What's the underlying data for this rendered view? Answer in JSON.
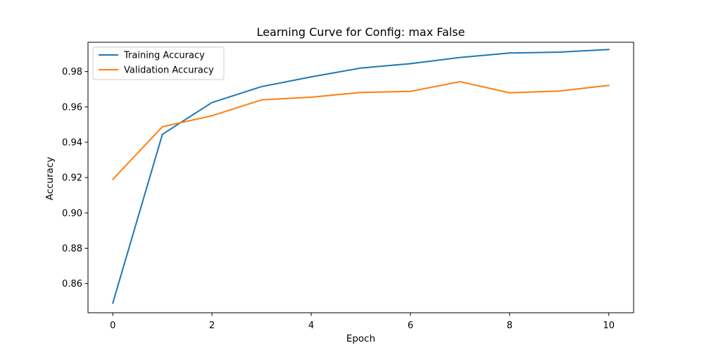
{
  "chart_data": {
    "type": "line",
    "title": "Learning Curve for Config: max False",
    "xlabel": "Epoch",
    "ylabel": "Accuracy",
    "x": [
      0,
      1,
      2,
      3,
      4,
      5,
      6,
      7,
      8,
      9,
      10
    ],
    "xlim": [
      -0.5,
      10.5
    ],
    "ylim": [
      0.8435,
      0.9966
    ],
    "xticks": [
      0,
      2,
      4,
      6,
      8,
      10
    ],
    "xtick_labels": [
      "0",
      "2",
      "4",
      "6",
      "8",
      "10"
    ],
    "yticks": [
      0.86,
      0.88,
      0.9,
      0.92,
      0.94,
      0.96,
      0.98
    ],
    "ytick_labels": [
      "0.86",
      "0.88",
      "0.90",
      "0.92",
      "0.94",
      "0.96",
      "0.98"
    ],
    "grid": false,
    "legend_position": "top-left",
    "series": [
      {
        "name": "Training Accuracy",
        "color": "#1f77b4",
        "values": [
          0.849,
          0.9445,
          0.9625,
          0.9715,
          0.977,
          0.982,
          0.9845,
          0.988,
          0.9905,
          0.991,
          0.9925
        ]
      },
      {
        "name": "Validation Accuracy",
        "color": "#ff7f0e",
        "values": [
          0.919,
          0.9488,
          0.955,
          0.964,
          0.9655,
          0.9682,
          0.9688,
          0.9743,
          0.968,
          0.969,
          0.9722
        ]
      }
    ]
  }
}
